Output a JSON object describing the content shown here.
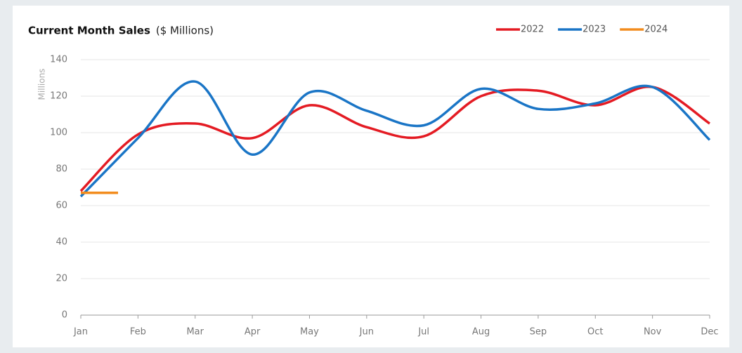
{
  "chart_data": {
    "type": "line",
    "title": "Current Month Sales",
    "subtitle": "($ Millions)",
    "y_label": "Millions",
    "categories": [
      "Jan",
      "Feb",
      "Mar",
      "Apr",
      "May",
      "Jun",
      "Jul",
      "Aug",
      "Sep",
      "Oct",
      "Nov",
      "Dec"
    ],
    "series": [
      {
        "name": "2022",
        "color": "#e41b23",
        "values": [
          68,
          99,
          105,
          97,
          115,
          103,
          98,
          120,
          123,
          115,
          125,
          105
        ]
      },
      {
        "name": "2023",
        "color": "#1a75c6",
        "values": [
          65,
          97,
          128,
          88,
          122,
          112,
          104,
          124,
          113,
          116,
          125,
          96
        ]
      },
      {
        "name": "2024",
        "color": "#f28c1e",
        "values": [
          67,
          null,
          null,
          null,
          null,
          null,
          null,
          null,
          null,
          null,
          null,
          null
        ]
      }
    ],
    "ylim": [
      0,
      140
    ],
    "yticks": [
      0,
      20,
      40,
      60,
      80,
      100,
      120,
      140
    ],
    "grid": true,
    "legend": "top-right",
    "smooth": true
  }
}
